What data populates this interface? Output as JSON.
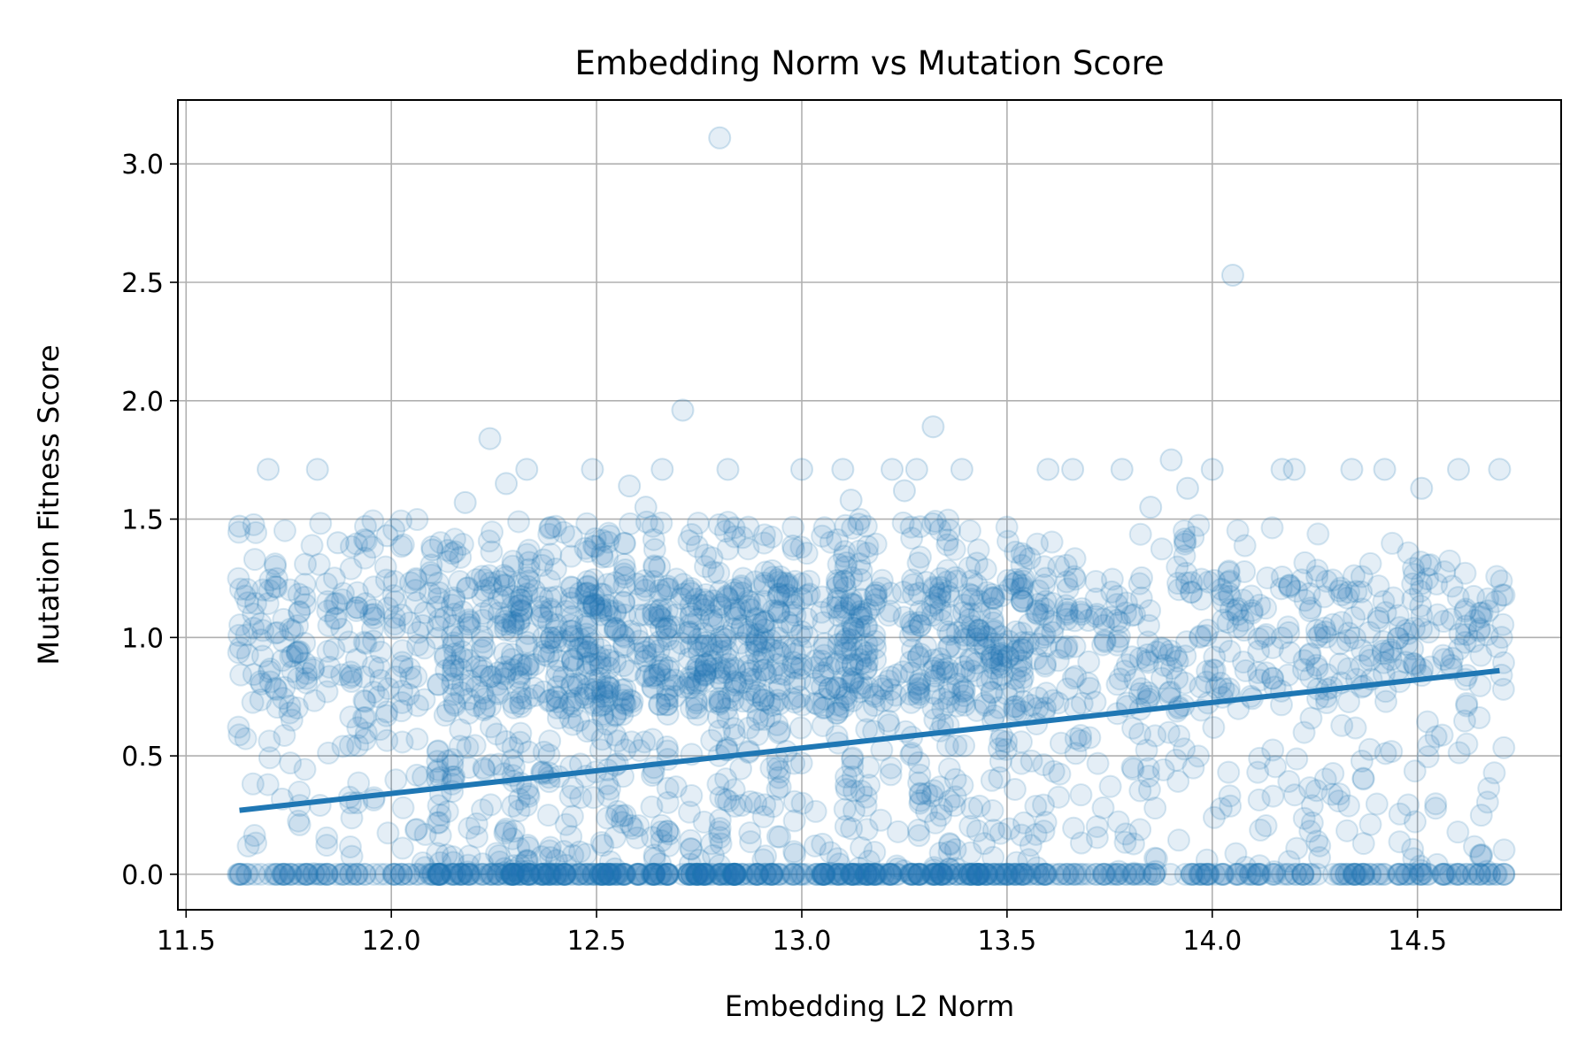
{
  "chart_data": {
    "type": "scatter",
    "title": "Embedding Norm vs Mutation Score",
    "xlabel": "Embedding L2 Norm",
    "ylabel": "Mutation Fitness Score",
    "xlim": [
      11.48,
      14.85
    ],
    "ylim": [
      -0.15,
      3.27
    ],
    "x_ticks": [
      "11.5",
      "12.0",
      "12.5",
      "13.0",
      "13.5",
      "14.0",
      "14.5"
    ],
    "x_tick_values": [
      11.5,
      12.0,
      12.5,
      13.0,
      13.5,
      14.0,
      14.5
    ],
    "y_ticks": [
      "0.0",
      "0.5",
      "1.0",
      "1.5",
      "2.0",
      "2.5",
      "3.0"
    ],
    "y_tick_values": [
      0.0,
      0.5,
      1.0,
      1.5,
      2.0,
      2.5,
      3.0
    ],
    "grid": true,
    "colors": {
      "series": "#1f77b4",
      "grid": "#b0b0b0",
      "axis": "#000000"
    },
    "point_alpha": 0.12,
    "series": [
      {
        "type": "scatter",
        "points": [
          [
            12.8,
            3.11
          ],
          [
            14.05,
            2.53
          ],
          [
            12.71,
            1.96
          ],
          [
            13.32,
            1.89
          ],
          [
            12.24,
            1.84
          ],
          [
            11.63,
            1.47
          ],
          [
            11.7,
            1.71
          ],
          [
            11.82,
            1.71
          ],
          [
            11.99,
            1.43
          ],
          [
            12.1,
            1.37
          ],
          [
            12.33,
            1.71
          ],
          [
            12.49,
            1.71
          ],
          [
            12.66,
            1.71
          ],
          [
            12.82,
            1.71
          ],
          [
            13.0,
            1.71
          ],
          [
            13.1,
            1.71
          ],
          [
            13.22,
            1.71
          ],
          [
            13.28,
            1.71
          ],
          [
            13.39,
            1.71
          ],
          [
            13.6,
            1.71
          ],
          [
            13.66,
            1.71
          ],
          [
            13.78,
            1.71
          ],
          [
            13.9,
            1.75
          ],
          [
            14.0,
            1.71
          ],
          [
            14.17,
            1.71
          ],
          [
            14.2,
            1.71
          ],
          [
            14.34,
            1.71
          ],
          [
            14.42,
            1.71
          ],
          [
            14.6,
            1.71
          ],
          [
            14.7,
            1.71
          ],
          [
            14.51,
            1.63
          ],
          [
            13.94,
            1.63
          ],
          [
            12.58,
            1.64
          ],
          [
            12.18,
            1.57
          ],
          [
            13.85,
            1.55
          ],
          [
            13.12,
            1.58
          ],
          [
            13.25,
            1.62
          ],
          [
            12.62,
            1.55
          ],
          [
            12.28,
            1.65
          ],
          [
            11.87,
            1.4
          ]
        ]
      },
      {
        "type": "line",
        "name": "",
        "x": [
          11.63,
          14.7
        ],
        "y": [
          0.27,
          0.86
        ]
      }
    ]
  }
}
